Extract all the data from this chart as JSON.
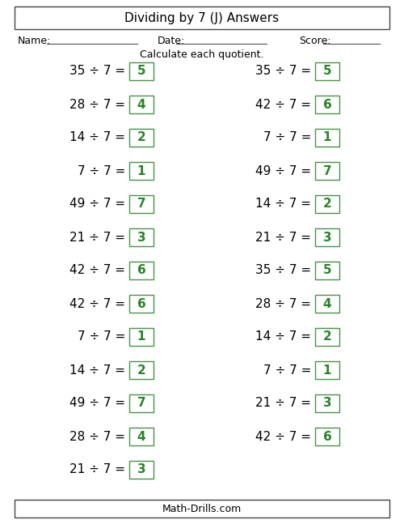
{
  "title": "Dividing by 7 (J) Answers",
  "subtitle": "Calculate each quotient.",
  "footer": "Math-Drills.com",
  "name_label": "Name:",
  "date_label": "Date:",
  "score_label": "Score:",
  "left_col": [
    {
      "problem": "35 ÷ 7 =",
      "answer": "5"
    },
    {
      "problem": "28 ÷ 7 =",
      "answer": "4"
    },
    {
      "problem": "14 ÷ 7 =",
      "answer": "2"
    },
    {
      "problem": "7 ÷ 7 =",
      "answer": "1"
    },
    {
      "problem": "49 ÷ 7 =",
      "answer": "7"
    },
    {
      "problem": "21 ÷ 7 =",
      "answer": "3"
    },
    {
      "problem": "42 ÷ 7 =",
      "answer": "6"
    },
    {
      "problem": "42 ÷ 7 =",
      "answer": "6"
    },
    {
      "problem": "7 ÷ 7 =",
      "answer": "1"
    },
    {
      "problem": "14 ÷ 7 =",
      "answer": "2"
    },
    {
      "problem": "49 ÷ 7 =",
      "answer": "7"
    },
    {
      "problem": "28 ÷ 7 =",
      "answer": "4"
    },
    {
      "problem": "21 ÷ 7 =",
      "answer": "3"
    }
  ],
  "right_col": [
    {
      "problem": "35 ÷ 7 =",
      "answer": "5"
    },
    {
      "problem": "42 ÷ 7 =",
      "answer": "6"
    },
    {
      "problem": "7 ÷ 7 =",
      "answer": "1"
    },
    {
      "problem": "49 ÷ 7 =",
      "answer": "7"
    },
    {
      "problem": "14 ÷ 7 =",
      "answer": "2"
    },
    {
      "problem": "21 ÷ 7 =",
      "answer": "3"
    },
    {
      "problem": "35 ÷ 7 =",
      "answer": "5"
    },
    {
      "problem": "28 ÷ 7 =",
      "answer": "4"
    },
    {
      "problem": "14 ÷ 7 =",
      "answer": "2"
    },
    {
      "problem": "7 ÷ 7 =",
      "answer": "1"
    },
    {
      "problem": "21 ÷ 7 =",
      "answer": "3"
    },
    {
      "problem": "42 ÷ 7 =",
      "answer": "6"
    }
  ],
  "bg_color": "#ffffff",
  "text_color": "#000000",
  "answer_color": "#2a822a",
  "box_edge_color": "#4a924a",
  "title_fontsize": 11,
  "problem_fontsize": 11,
  "answer_fontsize": 11,
  "header_fontsize": 9,
  "footer_fontsize": 9
}
